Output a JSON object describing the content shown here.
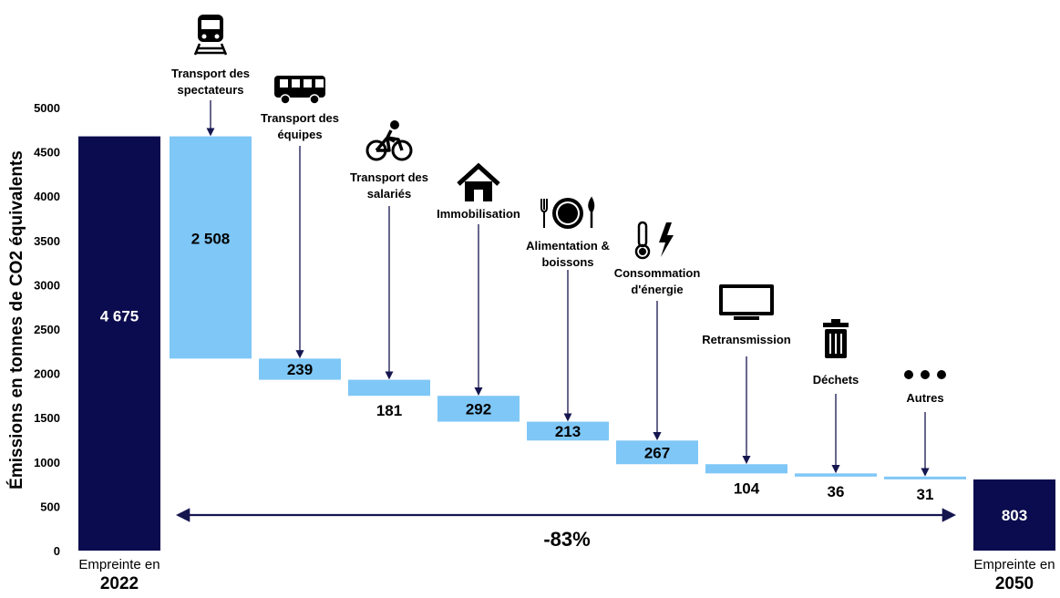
{
  "colors": {
    "dark_navy": "#0b0b4f",
    "light_blue": "#7fc7f7",
    "arrow": "#15154f"
  },
  "chart_data": {
    "type": "bar",
    "subtype": "waterfall",
    "ylabel": "Émissions en tonnes de CO2 équivalents",
    "ylim": [
      0,
      5000
    ],
    "yticks": [
      0,
      500,
      1000,
      1500,
      2000,
      2500,
      3000,
      3500,
      4000,
      4500,
      5000
    ],
    "start": {
      "label": "Empreinte en",
      "year": "2022",
      "value": 4675,
      "value_label": "4 675"
    },
    "end": {
      "label": "Empreinte en",
      "year": "2050",
      "value": 803,
      "value_label": "803"
    },
    "steps": [
      {
        "category": "Transport des spectateurs",
        "lines": [
          "Transport des",
          "spectateurs"
        ],
        "value": -2508,
        "value_label": "2 508",
        "icon": "train-icon"
      },
      {
        "category": "Transport des équipes",
        "lines": [
          "Transport des",
          "équipes"
        ],
        "value": -239,
        "value_label": "239",
        "icon": "bus-icon"
      },
      {
        "category": "Transport des salariés",
        "lines": [
          "Transport des",
          "salariés"
        ],
        "value": -181,
        "value_label": "181",
        "icon": "bicycle-icon"
      },
      {
        "category": "Immobilisation",
        "lines": [
          "Immobilisation"
        ],
        "value": -292,
        "value_label": "292",
        "icon": "house-icon"
      },
      {
        "category": "Alimentation & boissons",
        "lines": [
          "Alimentation &",
          "boissons"
        ],
        "value": -213,
        "value_label": "213",
        "icon": "plate-cutlery-icon"
      },
      {
        "category": "Consommation d'énergie",
        "lines": [
          "Consommation",
          "d'énergie"
        ],
        "value": -267,
        "value_label": "267",
        "icon": "thermometer-lightning-icon"
      },
      {
        "category": "Retransmission",
        "lines": [
          "Retransmission"
        ],
        "value": -104,
        "value_label": "104",
        "icon": "tv-icon"
      },
      {
        "category": "Déchets",
        "lines": [
          "Déchets"
        ],
        "value": -36,
        "value_label": "36",
        "icon": "trash-icon"
      },
      {
        "category": "Autres",
        "lines": [
          "Autres"
        ],
        "value": -31,
        "value_label": "31",
        "icon": "ellipsis-icon"
      }
    ],
    "reduction_label": "-83%"
  }
}
